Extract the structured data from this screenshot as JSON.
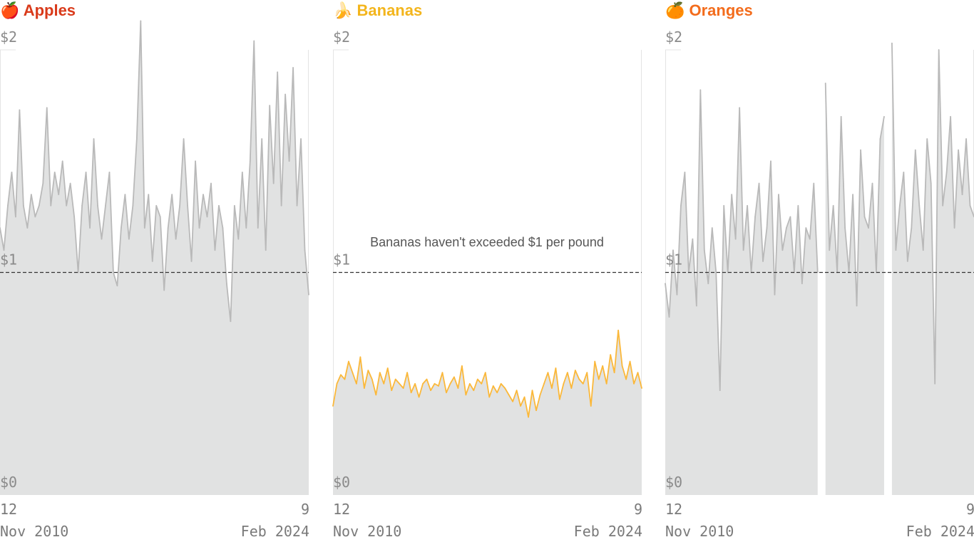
{
  "chart_data": [
    {
      "type": "area",
      "title": "🍎 Apples",
      "title_color": "#d93a1a",
      "line_color": "#b9b9b9",
      "fill_color": "#e1e2e2",
      "ylim": [
        0,
        2
      ],
      "y_ticks": [
        "$2",
        "$1",
        "$0"
      ],
      "reference_line": 1,
      "x_start": {
        "day": "12",
        "month_year": "Nov 2010"
      },
      "x_end": {
        "day": "9",
        "month_year": "Feb 2024"
      },
      "values": [
        1.2,
        1.1,
        1.3,
        1.45,
        1.25,
        1.73,
        1.3,
        1.2,
        1.35,
        1.25,
        1.3,
        1.4,
        1.74,
        1.3,
        1.45,
        1.35,
        1.5,
        1.3,
        1.4,
        1.25,
        1.0,
        1.3,
        1.45,
        1.2,
        1.6,
        1.3,
        1.15,
        1.3,
        1.45,
        1.0,
        0.94,
        1.2,
        1.35,
        1.15,
        1.3,
        1.6,
        2.13,
        1.2,
        1.35,
        1.05,
        1.3,
        1.25,
        0.92,
        1.2,
        1.35,
        1.15,
        1.3,
        1.6,
        1.3,
        1.05,
        1.5,
        1.2,
        1.35,
        1.25,
        1.4,
        1.1,
        1.3,
        1.2,
        0.95,
        0.78,
        1.3,
        1.15,
        1.45,
        1.2,
        1.5,
        2.04,
        1.2,
        1.6,
        1.1,
        1.75,
        1.4,
        1.9,
        1.3,
        1.8,
        1.5,
        1.92,
        1.3,
        1.6,
        1.1,
        0.9
      ]
    },
    {
      "type": "area",
      "title": "🍌 Bananas",
      "title_color": "#f3b51c",
      "line_color": "#fbb83a",
      "fill_color": "#e1e2e2",
      "ylim": [
        0,
        2
      ],
      "y_ticks": [
        "$2",
        "$1",
        "$0"
      ],
      "reference_line": 1,
      "annotation": "Bananas haven't exceeded $1 per pound",
      "x_start": {
        "day": "12",
        "month_year": "Nov 2010"
      },
      "x_end": {
        "day": "9",
        "month_year": "Feb 2024"
      },
      "values": [
        0.4,
        0.5,
        0.54,
        0.52,
        0.6,
        0.55,
        0.5,
        0.62,
        0.48,
        0.56,
        0.52,
        0.45,
        0.55,
        0.5,
        0.57,
        0.47,
        0.52,
        0.5,
        0.48,
        0.55,
        0.46,
        0.5,
        0.44,
        0.5,
        0.52,
        0.47,
        0.5,
        0.49,
        0.55,
        0.46,
        0.5,
        0.53,
        0.48,
        0.58,
        0.45,
        0.5,
        0.47,
        0.52,
        0.5,
        0.55,
        0.44,
        0.49,
        0.46,
        0.5,
        0.48,
        0.45,
        0.42,
        0.47,
        0.4,
        0.44,
        0.35,
        0.47,
        0.38,
        0.45,
        0.5,
        0.55,
        0.48,
        0.57,
        0.43,
        0.5,
        0.55,
        0.48,
        0.56,
        0.52,
        0.5,
        0.55,
        0.4,
        0.6,
        0.52,
        0.58,
        0.5,
        0.63,
        0.55,
        0.74,
        0.58,
        0.52,
        0.6,
        0.5,
        0.55,
        0.48
      ]
    },
    {
      "type": "area",
      "title": "🍊 Oranges",
      "title_color": "#f36c1c",
      "line_color": "#b9b9b9",
      "fill_color": "#e1e2e2",
      "ylim": [
        0,
        2
      ],
      "y_ticks": [
        "$2",
        "$1",
        "$0"
      ],
      "reference_line": 1,
      "x_start": {
        "day": "12",
        "month_year": "Nov 2010"
      },
      "x_end": {
        "day": "9",
        "month_year": "Feb 2024"
      },
      "values": [
        0.95,
        0.8,
        1.1,
        0.9,
        1.3,
        1.45,
        1.0,
        1.15,
        0.85,
        1.82,
        1.1,
        0.95,
        1.2,
        1.0,
        0.47,
        1.3,
        1.0,
        1.35,
        1.15,
        1.74,
        1.1,
        1.3,
        1.0,
        1.25,
        1.4,
        1.05,
        1.2,
        1.5,
        0.9,
        1.35,
        1.1,
        1.2,
        1.25,
        1.0,
        1.3,
        0.95,
        1.2,
        1.15,
        1.4,
        1.0,
        null,
        1.85,
        1.1,
        1.3,
        1.0,
        1.7,
        1.2,
        1.0,
        1.35,
        0.85,
        1.55,
        1.25,
        1.2,
        1.4,
        1.0,
        1.6,
        1.7,
        null,
        2.03,
        1.1,
        1.3,
        1.45,
        1.05,
        1.2,
        1.55,
        1.3,
        1.1,
        1.6,
        1.4,
        0.5,
        2.0,
        1.3,
        1.45,
        1.7,
        1.2,
        1.55,
        1.35,
        1.6,
        1.3,
        1.25
      ]
    }
  ]
}
